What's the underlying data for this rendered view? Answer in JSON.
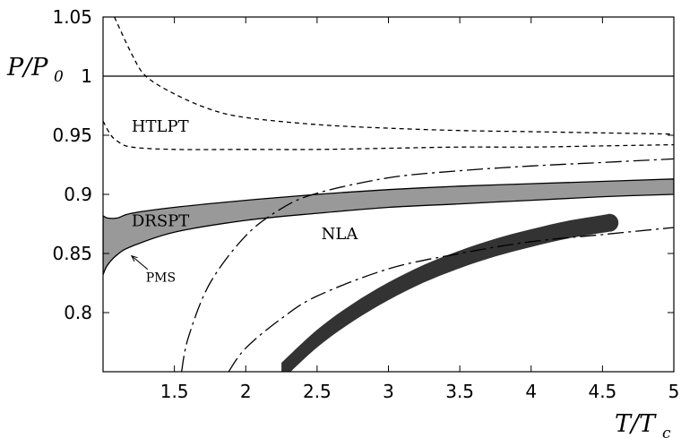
{
  "chart_data": {
    "type": "line",
    "xlabel": "T/T_c",
    "ylabel": "P/P_0",
    "xlim": [
      1.0,
      5.0
    ],
    "ylim": [
      0.75,
      1.05
    ],
    "xticks": [
      "1.5",
      "2",
      "2.5",
      "3",
      "3.5",
      "4",
      "4.5",
      "5"
    ],
    "yticks": [
      "0.8",
      "0.85",
      "0.9",
      "0.95",
      "1",
      "1.05"
    ],
    "grid": false,
    "series": [
      {
        "name": "ideal-gas",
        "style": "solid",
        "color": "#000000",
        "x": [
          1.0,
          5.0
        ],
        "y": [
          1.0,
          1.0
        ]
      },
      {
        "name": "htlpt-upper",
        "style": "dashed",
        "color": "#000000",
        "x": [
          1.08,
          1.2,
          1.3,
          1.5,
          1.75,
          2.0,
          2.5,
          3.0,
          3.5,
          4.0,
          4.5,
          5.0
        ],
        "y": [
          1.05,
          1.019,
          1.0,
          0.985,
          0.972,
          0.965,
          0.959,
          0.956,
          0.954,
          0.953,
          0.952,
          0.951
        ]
      },
      {
        "name": "htlpt-lower",
        "style": "dashed",
        "color": "#000000",
        "x": [
          1.0,
          1.05,
          1.1,
          1.2,
          1.5,
          2.0,
          2.5,
          3.0,
          3.5,
          4.0,
          4.5,
          5.0
        ],
        "y": [
          0.962,
          0.951,
          0.945,
          0.94,
          0.938,
          0.938,
          0.938,
          0.939,
          0.94,
          0.94,
          0.941,
          0.942
        ]
      },
      {
        "name": "nla-dashdot-1",
        "style": "dashdot",
        "color": "#000000",
        "x": [
          1.55,
          1.6,
          1.75,
          2.0,
          2.25,
          2.5,
          3.0,
          3.5,
          4.0,
          4.5,
          5.0
        ],
        "y": [
          0.75,
          0.78,
          0.825,
          0.865,
          0.888,
          0.901,
          0.914,
          0.92,
          0.924,
          0.927,
          0.93
        ]
      },
      {
        "name": "nla-dashdot-2",
        "style": "dashdot",
        "color": "#000000",
        "x": [
          1.88,
          2.0,
          2.25,
          2.5,
          3.0,
          3.5,
          4.0,
          4.5,
          5.0
        ],
        "y": [
          0.75,
          0.77,
          0.795,
          0.814,
          0.837,
          0.85,
          0.86,
          0.866,
          0.872
        ]
      }
    ],
    "bands": [
      {
        "name": "drspt",
        "color": "#999999",
        "stroke": "#000000",
        "x": [
          1.0,
          1.03,
          1.1,
          1.2,
          1.5,
          2.0,
          2.5,
          3.0,
          3.5,
          4.0,
          4.5,
          5.0
        ],
        "upper": [
          0.882,
          0.88,
          0.88,
          0.884,
          0.889,
          0.895,
          0.9,
          0.904,
          0.907,
          0.909,
          0.911,
          0.913
        ],
        "lower": [
          0.832,
          0.84,
          0.849,
          0.856,
          0.868,
          0.878,
          0.884,
          0.889,
          0.892,
          0.895,
          0.898,
          0.9
        ]
      },
      {
        "name": "nla",
        "color": "#333333",
        "stroke": "none",
        "x": [
          2.25,
          2.5,
          2.75,
          3.0,
          3.25,
          3.5,
          3.75,
          4.0,
          4.25,
          4.5,
          4.55
        ],
        "center": [
          0.75,
          0.778,
          0.8,
          0.818,
          0.833,
          0.845,
          0.855,
          0.863,
          0.87,
          0.875,
          0.876
        ],
        "halfwidth": 0.0075
      }
    ],
    "annotations": [
      {
        "text": "HTLPT",
        "x": 1.2,
        "y": 0.953
      },
      {
        "text": "DRSPT",
        "x": 1.2,
        "y": 0.873
      },
      {
        "text": "NLA",
        "x": 2.53,
        "y": 0.862
      },
      {
        "text": "PMS",
        "x": 1.3,
        "y": 0.826,
        "arrow_to": [
          1.2,
          0.848
        ]
      }
    ]
  }
}
